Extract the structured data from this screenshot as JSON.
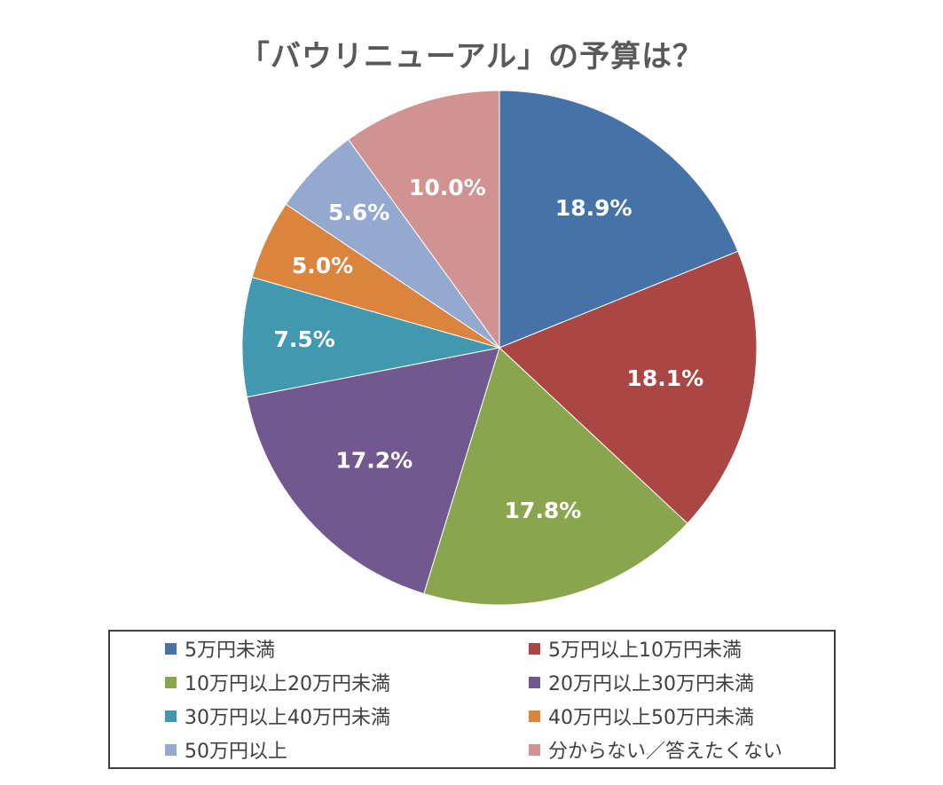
{
  "chart_data": {
    "type": "pie",
    "title": "「バウリニューアル」の予算は？",
    "start_angle_deg": 0,
    "direction": "clockwise",
    "legend_position": "bottom",
    "slices": [
      {
        "name": "5万円未満",
        "value": 18.9,
        "label": "18.9%",
        "color": "#4572A7"
      },
      {
        "name": "5万円以上10万円未満",
        "value": 18.1,
        "label": "18.1%",
        "color": "#AA4643"
      },
      {
        "name": "10万円以上20万円未満",
        "value": 17.8,
        "label": "17.8%",
        "color": "#89A54E"
      },
      {
        "name": "20万円以上30万円未満",
        "value": 17.2,
        "label": "17.2%",
        "color": "#71588F"
      },
      {
        "name": "30万円以上40万円未満",
        "value": 7.5,
        "label": "7.5%",
        "color": "#4198AF"
      },
      {
        "name": "40万円以上50万円未満",
        "value": 5.0,
        "label": "5.0%",
        "color": "#DB843D"
      },
      {
        "name": "50万円以上",
        "value": 5.6,
        "label": "5.6%",
        "color": "#93A9CF"
      },
      {
        "name": "分からない／答えたくない",
        "value": 10.0,
        "label": "10.0%",
        "color": "#D19392"
      }
    ]
  }
}
